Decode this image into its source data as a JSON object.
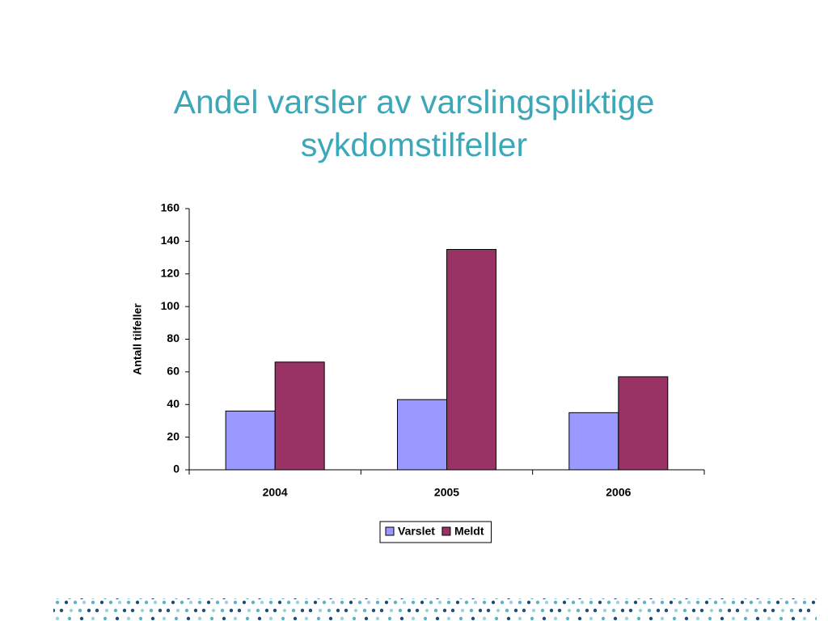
{
  "chart_data": {
    "type": "bar",
    "title": "Andel varsler av varslingspliktige sykdomstilfeller",
    "y_label": "Antall tilfeller",
    "categories": [
      "2004",
      "2005",
      "2006"
    ],
    "series": [
      {
        "name": "Varslet",
        "color": "#9999ff",
        "values": [
          36,
          43,
          35
        ]
      },
      {
        "name": "Meldt",
        "color": "#993366",
        "values": [
          66,
          135,
          57
        ]
      }
    ],
    "ylim": [
      0,
      160
    ],
    "yticks": [
      0,
      20,
      40,
      60,
      80,
      100,
      120,
      140,
      160
    ],
    "grid": false,
    "legend": "bottom"
  }
}
